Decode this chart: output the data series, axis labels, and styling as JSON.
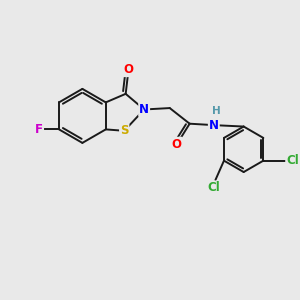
{
  "background_color": "#e9e9e9",
  "bond_color": "#1a1a1a",
  "atom_colors": {
    "O": "#ff0000",
    "N": "#0000ff",
    "S": "#ccaa00",
    "F": "#cc00cc",
    "Cl": "#33aa33",
    "H": "#5599aa",
    "C": "#1a1a1a"
  },
  "figsize": [
    3.0,
    3.0
  ],
  "dpi": 100
}
